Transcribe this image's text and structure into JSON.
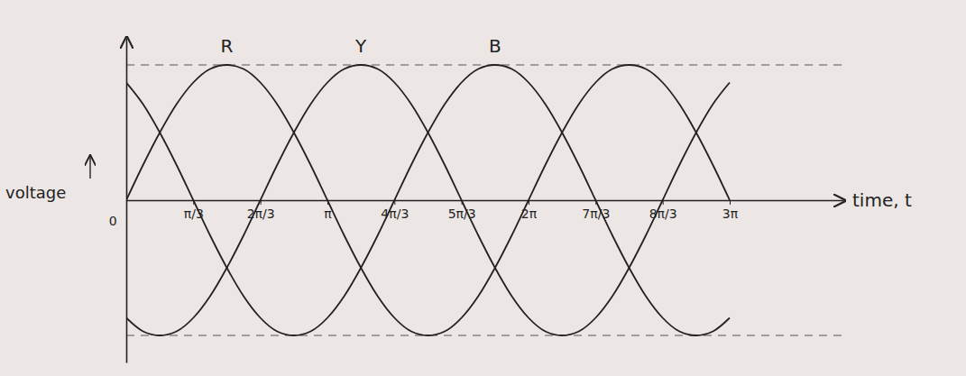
{
  "chart_data": {
    "type": "line",
    "x_label": "time, t",
    "y_label": "voltage",
    "x": [
      0,
      0.2618,
      0.5236,
      0.7854,
      1.0472,
      1.309,
      1.5708,
      1.8326,
      2.0944,
      2.3562,
      2.618,
      2.8798,
      3.1416,
      3.4034,
      3.6652,
      3.927,
      4.1888,
      4.4506,
      4.7124,
      4.9742,
      5.236,
      5.4978,
      5.7596,
      6.0214,
      6.2832,
      6.545,
      6.8068,
      7.0686,
      7.3304,
      7.5922,
      7.854,
      8.1158,
      8.3776,
      8.6394,
      8.9012,
      9.163,
      9.4248
    ],
    "series": [
      {
        "name": "R",
        "color": "#222222",
        "values": [
          0,
          0.26,
          0.5,
          0.71,
          0.87,
          0.97,
          1,
          0.97,
          0.87,
          0.71,
          0.5,
          0.26,
          0,
          -0.26,
          -0.5,
          -0.71,
          -0.87,
          -0.97,
          -1,
          -0.97,
          -0.87,
          -0.71,
          -0.5,
          -0.26,
          0,
          0.26,
          0.5,
          0.71,
          0.87,
          0.97,
          1,
          0.97,
          0.87,
          0.71,
          0.5,
          0.26,
          0
        ]
      },
      {
        "name": "Y",
        "color": "#222222",
        "values": [
          -0.87,
          -0.97,
          -1,
          -0.97,
          -0.87,
          -0.71,
          -0.5,
          -0.26,
          0,
          0.26,
          0.5,
          0.71,
          0.87,
          0.97,
          1,
          0.97,
          0.87,
          0.71,
          0.5,
          0.26,
          0,
          -0.26,
          -0.5,
          -0.71,
          -0.87,
          -0.97,
          -1,
          -0.97,
          -0.87,
          -0.71,
          -0.5,
          -0.26,
          0,
          0.26,
          0.5,
          0.71,
          0.87
        ]
      },
      {
        "name": "B",
        "color": "#222222",
        "values": [
          0.87,
          0.71,
          0.5,
          0.26,
          0,
          -0.26,
          -0.5,
          -0.71,
          -0.87,
          -0.97,
          -1,
          -0.97,
          -0.87,
          -0.71,
          -0.5,
          -0.26,
          0,
          0.26,
          0.5,
          0.71,
          0.87,
          0.97,
          1,
          0.97,
          0.87,
          0.71,
          0.5,
          0.26,
          0,
          -0.26,
          -0.5,
          -0.71,
          -0.87,
          -0.97,
          -1,
          -0.97,
          -0.87
        ]
      }
    ],
    "xlim": [
      0,
      11.2
    ],
    "ylim": [
      -1.2,
      1.2
    ],
    "xticks": [
      0,
      {
        "value": 1.0472,
        "label": "π/3"
      },
      {
        "value": 2.0944,
        "label": "2π/3"
      },
      {
        "value": 3.1416,
        "label": "π"
      },
      {
        "value": 4.1888,
        "label": "4π/3"
      },
      {
        "value": 5.236,
        "label": "5π/3"
      },
      {
        "value": 6.2832,
        "label": "2π"
      },
      {
        "value": 7.3304,
        "label": "7π/3"
      },
      {
        "value": 8.3776,
        "label": "8π/3"
      },
      {
        "value": 9.4248,
        "label": "3π"
      }
    ],
    "yticks": [
      -1,
      1
    ],
    "grid": true,
    "tick_labels": "x"
  }
}
